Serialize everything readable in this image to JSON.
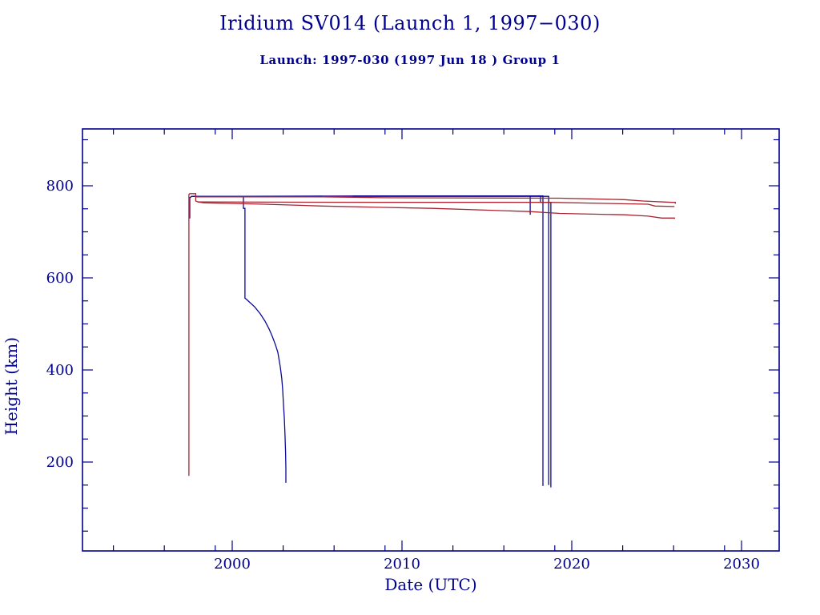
{
  "colors": {
    "background": "#ffffff",
    "axis": "#000090",
    "text": "#000090",
    "payload_blue": "#0a0a96",
    "rocket_red": "#a82430",
    "overlap_purple": "#7c1f8c"
  },
  "chart_data": {
    "type": "line",
    "title": "Iridium SV014 (Launch 1, 1997−030)",
    "subtitle": "Launch: 1997-030  (1997 Jun 18 )  Group 1",
    "x_axis": {
      "label": "Date (UTC)",
      "range": [
        1991.2,
        2032.2
      ],
      "major_ticks": [
        2000,
        2010,
        2020,
        2030
      ],
      "minor_ticks": [
        1993,
        1996,
        1999,
        2003,
        2006,
        2009,
        2013,
        2016,
        2019,
        2023,
        2026,
        2029
      ]
    },
    "y_axis": {
      "label": "Height (km)",
      "range": [
        0,
        923
      ],
      "major_ticks": [
        200,
        400,
        600,
        800
      ],
      "minor_ticks": [
        50,
        100,
        150,
        250,
        300,
        350,
        450,
        500,
        550,
        650,
        700,
        750,
        850,
        900
      ]
    },
    "grid": false,
    "legend": false,
    "series": [
      {
        "name": "payload-orbit-raise-and-deorbit-2018a",
        "color": "#0a0a96",
        "points": [
          [
            1997.5,
            729
          ],
          [
            1997.5,
            774
          ],
          [
            1997.62,
            777
          ],
          [
            2000.66,
            777
          ],
          [
            2007.1,
            778
          ],
          [
            2018.3,
            778
          ],
          [
            2018.3,
            148
          ]
        ]
      },
      {
        "name": "payload-deorbit-2018b",
        "color": "#0a0a96",
        "points": [
          [
            1997.6,
            777
          ],
          [
            2018.64,
            777
          ],
          [
            2018.64,
            150
          ]
        ]
      },
      {
        "name": "payload-partial-lowering-2017",
        "color": "#0a0a96",
        "points": [
          [
            2017.55,
            778
          ],
          [
            2017.55,
            737
          ]
        ]
      },
      {
        "name": "payload-lowered-then-deorbit-2018c",
        "color": "#0a0a96",
        "points": [
          [
            2018.16,
            778
          ],
          [
            2018.16,
            764
          ],
          [
            2018.77,
            764
          ],
          [
            2018.77,
            145
          ]
        ]
      },
      {
        "name": "payload-failed-decay-2003",
        "color": "#0a0a96",
        "points": [
          [
            2000.66,
            777
          ],
          [
            2000.66,
            751
          ],
          [
            2000.75,
            751
          ],
          [
            2000.75,
            556
          ],
          [
            2000.85,
            553
          ],
          [
            2001.32,
            537
          ],
          [
            2001.65,
            522
          ],
          [
            2001.93,
            506
          ],
          [
            2002.17,
            489
          ],
          [
            2002.36,
            473
          ],
          [
            2002.55,
            454
          ],
          [
            2002.69,
            438
          ],
          [
            2002.83,
            407
          ],
          [
            2002.92,
            381
          ],
          [
            2002.97,
            357
          ],
          [
            2003.02,
            325
          ],
          [
            2003.07,
            294
          ],
          [
            2003.11,
            259
          ],
          [
            2003.14,
            221
          ],
          [
            2003.16,
            186
          ],
          [
            2003.16,
            155
          ]
        ]
      },
      {
        "name": "overlap-ascent-segment",
        "color": "#7c1f8c",
        "points": [
          [
            1997.47,
            774
          ],
          [
            1997.47,
            729
          ]
        ]
      },
      {
        "name": "overlap-top-line-segment",
        "color": "#7c1f8c",
        "points": [
          [
            2005.33,
            777
          ],
          [
            2007.1,
            777
          ]
        ]
      },
      {
        "name": "overlap-lowered-segment",
        "color": "#7c1f8c",
        "points": [
          [
            2018.16,
            764
          ],
          [
            2018.73,
            764
          ]
        ]
      },
      {
        "name": "rocket-stage-ascent-and-slow-decay",
        "color": "#a82430",
        "points": [
          [
            1997.45,
            170
          ],
          [
            1997.45,
            781
          ],
          [
            1997.5,
            783
          ],
          [
            1997.85,
            783
          ],
          [
            1997.85,
            776
          ],
          [
            2005.3,
            776
          ],
          [
            2008.9,
            774
          ],
          [
            2019.3,
            773
          ],
          [
            2023.1,
            770
          ],
          [
            2024.2,
            767
          ],
          [
            2025.9,
            764
          ],
          [
            2026.1,
            764
          ],
          [
            2026.1,
            761
          ]
        ]
      },
      {
        "name": "rocket-stage-2-slow-decay",
        "color": "#a82430",
        "points": [
          [
            1997.85,
            776
          ],
          [
            1997.85,
            767
          ],
          [
            1998.0,
            765
          ],
          [
            2001.9,
            764.5
          ],
          [
            2009.0,
            764
          ],
          [
            2018.73,
            764
          ],
          [
            2024.5,
            760
          ],
          [
            2024.9,
            756
          ],
          [
            2026.05,
            755
          ]
        ]
      },
      {
        "name": "rocket-stage-3-slow-decay",
        "color": "#a82430",
        "points": [
          [
            1997.95,
            765
          ],
          [
            1998.35,
            763
          ],
          [
            2001.9,
            760
          ],
          [
            2005.3,
            756
          ],
          [
            2009.0,
            753
          ],
          [
            2011.8,
            751
          ],
          [
            2015.1,
            747
          ],
          [
            2017.5,
            744
          ],
          [
            2019.3,
            740
          ],
          [
            2023.1,
            737
          ],
          [
            2024.5,
            734
          ],
          [
            2025.3,
            730
          ],
          [
            2026.05,
            730
          ],
          [
            2026.05,
            728
          ]
        ]
      }
    ]
  }
}
